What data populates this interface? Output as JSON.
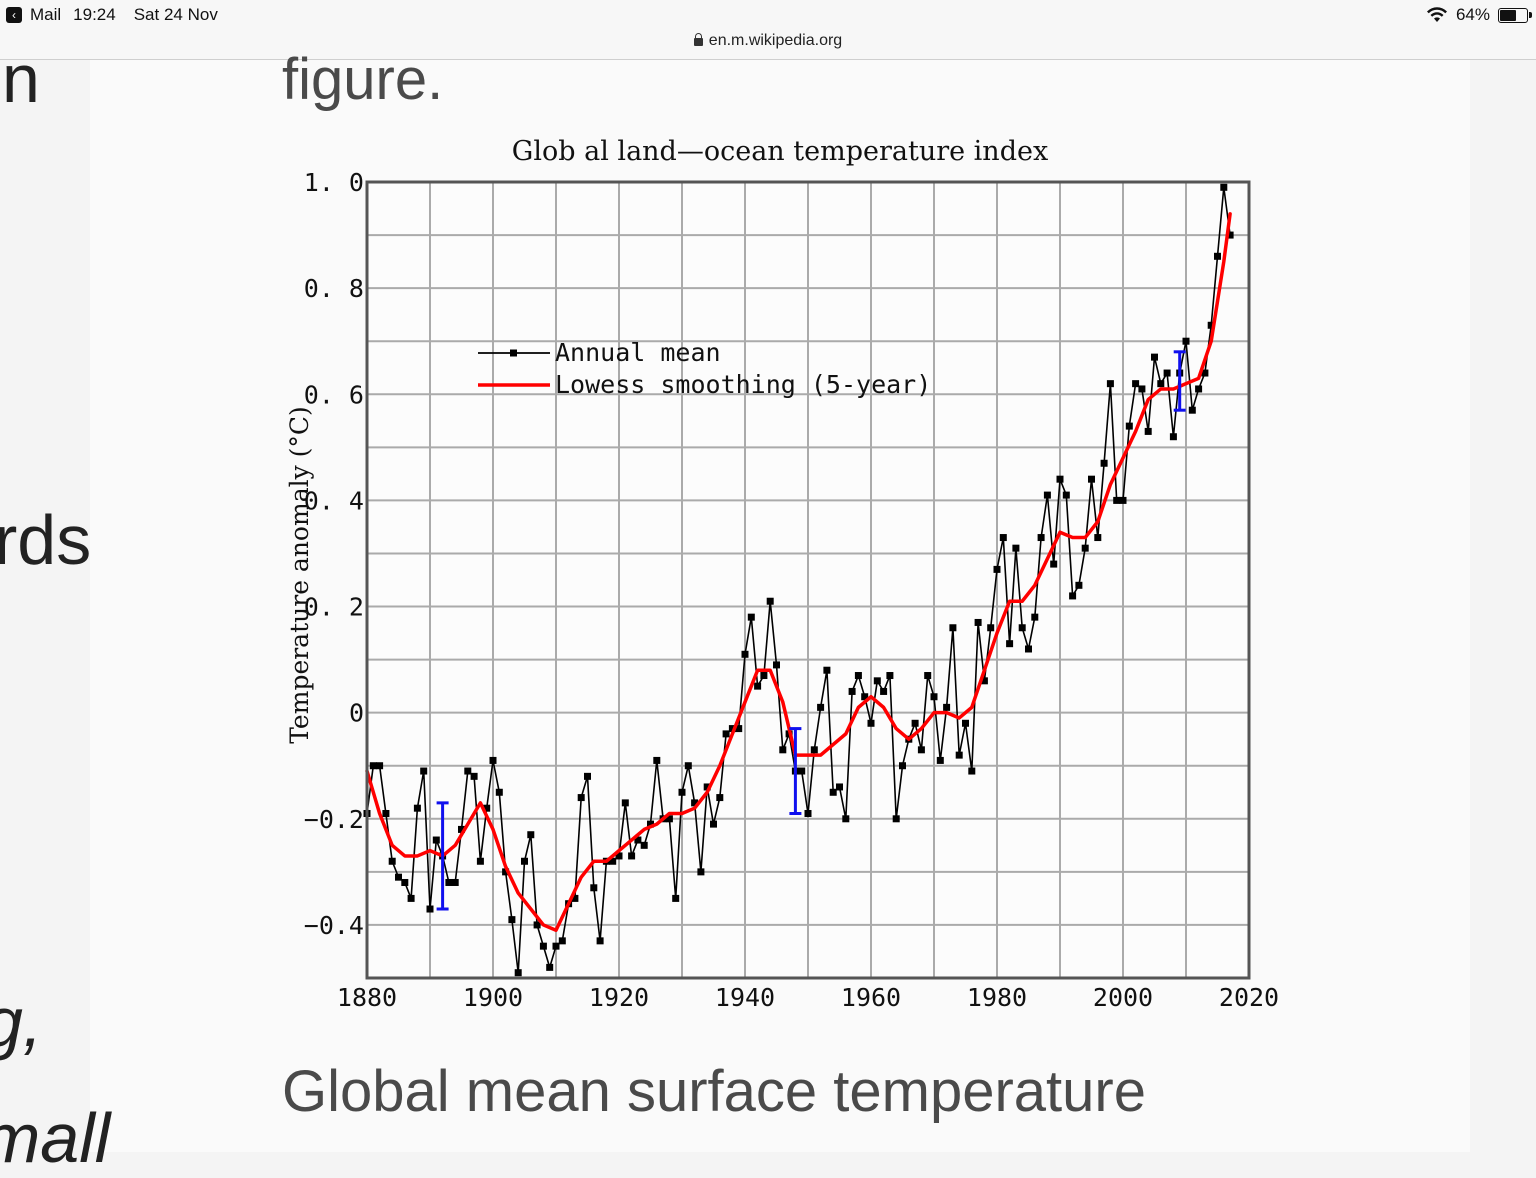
{
  "status_bar": {
    "back_app": "Mail",
    "time": "19:24",
    "date": "Sat 24 Nov",
    "battery": "64%",
    "battery_level": 0.64
  },
  "url_bar": {
    "domain": "en.m.wikipedia.org"
  },
  "background_text": {
    "frag1": "n",
    "frag2": "rds",
    "frag3": "g,",
    "frag4": "mall"
  },
  "article": {
    "figure_word": "figure.",
    "caption": "Global mean surface temperature"
  },
  "chart_data": {
    "type": "line",
    "title": "Glob al land—ocean temperature index",
    "xlabel": "",
    "ylabel": "Temperature anomaly (°C)",
    "xlim": [
      1880,
      2020
    ],
    "ylim": [
      -0.5,
      1.0
    ],
    "x_ticks": [
      1880,
      1900,
      1920,
      1940,
      1960,
      1980,
      2000,
      2020
    ],
    "x_tick_labels": [
      "1880",
      "1900",
      "1920",
      "1940",
      "1960",
      "1980",
      "2000",
      "2020"
    ],
    "y_ticks": [
      -0.4,
      -0.2,
      0,
      0.2,
      0.4,
      0.6,
      0.8,
      1.0
    ],
    "y_tick_labels": [
      "−0.4",
      "−0.2",
      "0",
      "0. 2",
      "0. 4",
      "0. 6",
      "0. 8",
      "1. 0"
    ],
    "grid": true,
    "legend_position": "upper-left",
    "series": [
      {
        "name": "Annual mean",
        "color": "#000000",
        "x": [
          1880,
          1881,
          1882,
          1883,
          1884,
          1885,
          1886,
          1887,
          1888,
          1889,
          1890,
          1891,
          1892,
          1893,
          1894,
          1895,
          1896,
          1897,
          1898,
          1899,
          1900,
          1901,
          1902,
          1903,
          1904,
          1905,
          1906,
          1907,
          1908,
          1909,
          1910,
          1911,
          1912,
          1913,
          1914,
          1915,
          1916,
          1917,
          1918,
          1919,
          1920,
          1921,
          1922,
          1923,
          1924,
          1925,
          1926,
          1927,
          1928,
          1929,
          1930,
          1931,
          1932,
          1933,
          1934,
          1935,
          1936,
          1937,
          1938,
          1939,
          1940,
          1941,
          1942,
          1943,
          1944,
          1945,
          1946,
          1947,
          1948,
          1949,
          1950,
          1951,
          1952,
          1953,
          1954,
          1955,
          1956,
          1957,
          1958,
          1959,
          1960,
          1961,
          1962,
          1963,
          1964,
          1965,
          1966,
          1967,
          1968,
          1969,
          1970,
          1971,
          1972,
          1973,
          1974,
          1975,
          1976,
          1977,
          1978,
          1979,
          1980,
          1981,
          1982,
          1983,
          1984,
          1985,
          1986,
          1987,
          1988,
          1989,
          1990,
          1991,
          1992,
          1993,
          1994,
          1995,
          1996,
          1997,
          1998,
          1999,
          2000,
          2001,
          2002,
          2003,
          2004,
          2005,
          2006,
          2007,
          2008,
          2009,
          2010,
          2011,
          2012,
          2013,
          2014,
          2015,
          2016,
          2017
        ],
        "values": [
          -0.19,
          -0.1,
          -0.1,
          -0.19,
          -0.28,
          -0.31,
          -0.32,
          -0.35,
          -0.18,
          -0.11,
          -0.37,
          -0.24,
          -0.27,
          -0.32,
          -0.32,
          -0.22,
          -0.11,
          -0.12,
          -0.28,
          -0.18,
          -0.09,
          -0.15,
          -0.3,
          -0.39,
          -0.49,
          -0.28,
          -0.23,
          -0.4,
          -0.44,
          -0.48,
          -0.44,
          -0.43,
          -0.36,
          -0.35,
          -0.16,
          -0.12,
          -0.33,
          -0.43,
          -0.28,
          -0.28,
          -0.27,
          -0.17,
          -0.27,
          -0.24,
          -0.25,
          -0.21,
          -0.09,
          -0.2,
          -0.2,
          -0.35,
          -0.15,
          -0.1,
          -0.17,
          -0.3,
          -0.14,
          -0.21,
          -0.16,
          -0.04,
          -0.03,
          -0.03,
          0.11,
          0.18,
          0.05,
          0.07,
          0.21,
          0.09,
          -0.07,
          -0.04,
          -0.11,
          -0.11,
          -0.19,
          -0.07,
          0.01,
          0.08,
          -0.15,
          -0.14,
          -0.2,
          0.04,
          0.07,
          0.03,
          -0.02,
          0.06,
          0.04,
          0.07,
          -0.2,
          -0.1,
          -0.05,
          -0.02,
          -0.07,
          0.07,
          0.03,
          -0.09,
          0.01,
          0.16,
          -0.08,
          -0.02,
          -0.11,
          0.17,
          0.06,
          0.16,
          0.27,
          0.33,
          0.13,
          0.31,
          0.16,
          0.12,
          0.18,
          0.33,
          0.41,
          0.28,
          0.44,
          0.41,
          0.22,
          0.24,
          0.31,
          0.44,
          0.33,
          0.47,
          0.62,
          0.4,
          0.4,
          0.54,
          0.62,
          0.61,
          0.53,
          0.67,
          0.62,
          0.64,
          0.52,
          0.64,
          0.7,
          0.57,
          0.61,
          0.64,
          0.73,
          0.86,
          0.99,
          0.9
        ]
      },
      {
        "name": "Lowess smoothing (5-year)",
        "color": "#ff0000",
        "x": [
          1880,
          1882,
          1884,
          1886,
          1888,
          1890,
          1892,
          1894,
          1896,
          1898,
          1900,
          1902,
          1904,
          1906,
          1908,
          1910,
          1912,
          1914,
          1916,
          1918,
          1920,
          1922,
          1924,
          1926,
          1928,
          1930,
          1932,
          1934,
          1936,
          1938,
          1940,
          1942,
          1944,
          1946,
          1948,
          1950,
          1952,
          1954,
          1956,
          1958,
          1960,
          1962,
          1964,
          1966,
          1968,
          1970,
          1972,
          1974,
          1976,
          1978,
          1980,
          1982,
          1984,
          1986,
          1988,
          1990,
          1992,
          1994,
          1996,
          1998,
          2000,
          2002,
          2004,
          2006,
          2008,
          2010,
          2012,
          2014,
          2016,
          2017
        ],
        "values": [
          -0.11,
          -0.19,
          -0.25,
          -0.27,
          -0.27,
          -0.26,
          -0.27,
          -0.25,
          -0.21,
          -0.17,
          -0.22,
          -0.29,
          -0.34,
          -0.37,
          -0.4,
          -0.41,
          -0.36,
          -0.31,
          -0.28,
          -0.28,
          -0.26,
          -0.24,
          -0.22,
          -0.21,
          -0.19,
          -0.19,
          -0.18,
          -0.15,
          -0.1,
          -0.04,
          0.02,
          0.08,
          0.08,
          0.02,
          -0.08,
          -0.08,
          -0.08,
          -0.06,
          -0.04,
          0.01,
          0.03,
          0.01,
          -0.03,
          -0.05,
          -0.03,
          0.0,
          0.0,
          -0.01,
          0.01,
          0.08,
          0.15,
          0.21,
          0.21,
          0.24,
          0.29,
          0.34,
          0.33,
          0.33,
          0.36,
          0.43,
          0.48,
          0.53,
          0.59,
          0.61,
          0.61,
          0.62,
          0.63,
          0.7,
          0.85,
          0.94
        ]
      }
    ],
    "error_bars": [
      {
        "x": 1892,
        "low": -0.37,
        "high": -0.17
      },
      {
        "x": 1948,
        "low": -0.19,
        "high": -0.03
      },
      {
        "x": 2009,
        "low": 0.57,
        "high": 0.68
      }
    ]
  }
}
